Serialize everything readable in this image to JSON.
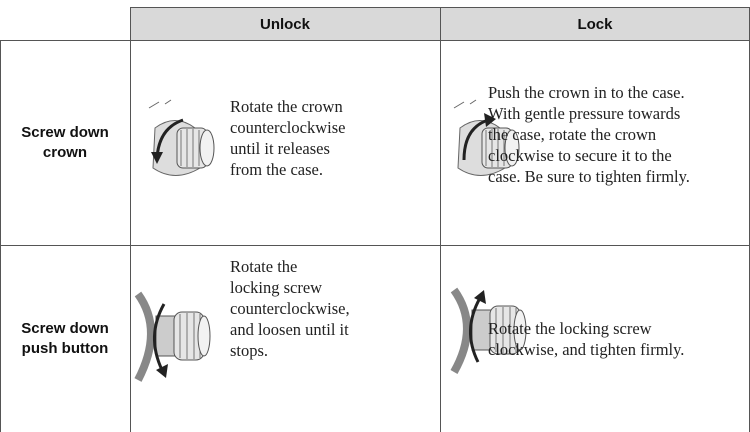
{
  "table": {
    "headers": [
      "Unlock",
      "Lock"
    ],
    "rows": [
      {
        "label": [
          "Screw down",
          "crown"
        ],
        "unlock": [
          "Rotate the crown",
          "counterclockwise",
          "until it releases",
          "from the case."
        ],
        "lock": [
          "Push the crown in to the case.",
          "With gentle pressure towards",
          "the case, rotate the crown",
          "clockwise to secure it to the",
          "case. Be sure to tighten firmly."
        ]
      },
      {
        "label": [
          "Screw down",
          "push button"
        ],
        "unlock": [
          "Rotate the",
          "locking screw",
          "counterclockwise,",
          "and loosen until it",
          "stops."
        ],
        "lock": [
          "Rotate the locking screw",
          "clockwise, and tighten firmly."
        ]
      }
    ]
  }
}
